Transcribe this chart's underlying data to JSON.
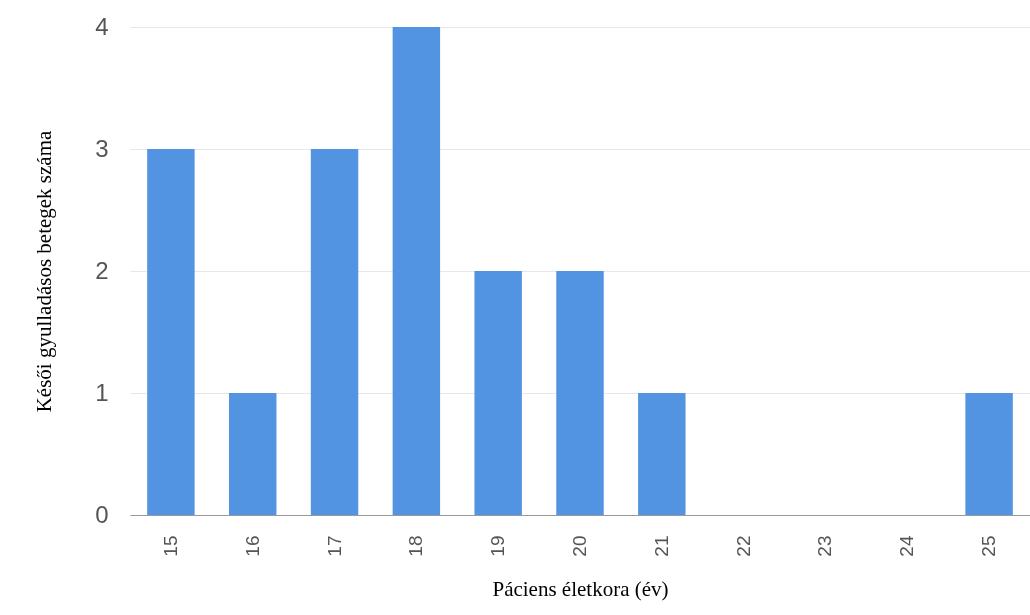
{
  "chart_data": {
    "type": "bar",
    "xlabel": "Páciens életkora (év)",
    "ylabel": "Késői gyulladásos betegek száma",
    "categories": [
      "15",
      "16",
      "17",
      "18",
      "19",
      "20",
      "21",
      "22",
      "23",
      "24",
      "25"
    ],
    "values": [
      3,
      1,
      3,
      4,
      2,
      2,
      1,
      0,
      0,
      0,
      1
    ],
    "color": "#5294e2",
    "ylim": [
      0,
      4
    ],
    "yticks": [
      0,
      1,
      2,
      3,
      4
    ],
    "grid": "y"
  }
}
